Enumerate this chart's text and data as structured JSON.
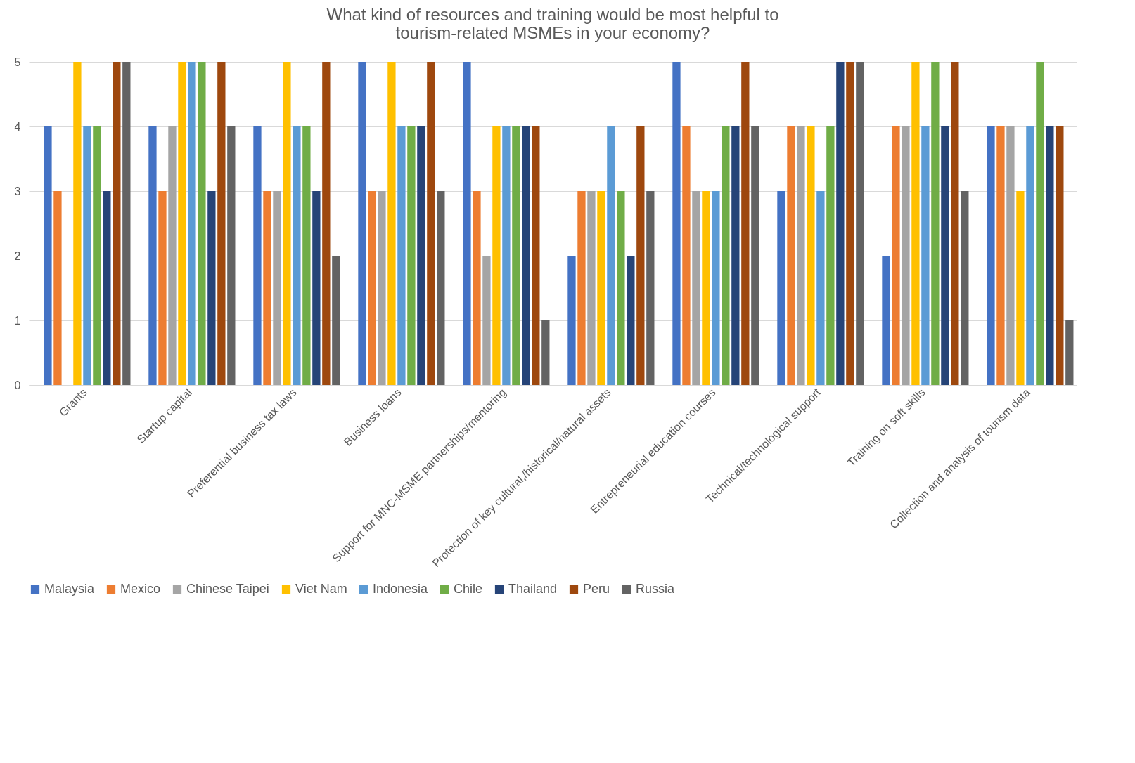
{
  "chart_data": {
    "type": "bar",
    "title": "What kind of resources and training would be most helpful to tourism-related MSMEs in your economy?",
    "categories": [
      "Grants",
      "Startup capital",
      "Preferential business tax laws",
      "Business loans",
      "Support for MNC-MSME partnerships/mentoring",
      "Protection of key cultural,/historical/natural assets",
      "Entrepreneurial education courses",
      "Technical/technological support",
      "Training on soft skills",
      "Collection and analysis of tourism data"
    ],
    "series": [
      {
        "name": "Malaysia",
        "color": "#4472c4",
        "values": [
          4,
          4,
          4,
          5,
          5,
          2,
          5,
          3,
          2,
          4
        ]
      },
      {
        "name": "Mexico",
        "color": "#ed7d31",
        "values": [
          3,
          3,
          3,
          3,
          3,
          3,
          4,
          4,
          4,
          4
        ]
      },
      {
        "name": "Chinese Taipei",
        "color": "#a5a5a5",
        "values": [
          0,
          4,
          3,
          3,
          2,
          3,
          3,
          4,
          4,
          4
        ]
      },
      {
        "name": "Viet Nam",
        "color": "#ffc000",
        "values": [
          5,
          5,
          5,
          5,
          4,
          3,
          3,
          4,
          5,
          3
        ]
      },
      {
        "name": "Indonesia",
        "color": "#5b9bd5",
        "values": [
          4,
          5,
          4,
          4,
          4,
          4,
          3,
          3,
          4,
          4
        ]
      },
      {
        "name": "Chile",
        "color": "#70ad47",
        "values": [
          4,
          5,
          4,
          4,
          4,
          3,
          4,
          4,
          5,
          5
        ]
      },
      {
        "name": "Thailand",
        "color": "#264478",
        "values": [
          3,
          3,
          3,
          4,
          4,
          2,
          4,
          5,
          4,
          4
        ]
      },
      {
        "name": "Peru",
        "color": "#9e480e",
        "values": [
          5,
          5,
          5,
          5,
          4,
          4,
          5,
          5,
          5,
          4
        ]
      },
      {
        "name": "Russia",
        "color": "#636363",
        "values": [
          5,
          4,
          2,
          3,
          1,
          3,
          4,
          5,
          3,
          1
        ]
      }
    ],
    "ylim": [
      0,
      5
    ],
    "yticks": [
      0,
      1,
      2,
      3,
      4,
      5
    ],
    "grid": "y",
    "legend": "bottom"
  }
}
